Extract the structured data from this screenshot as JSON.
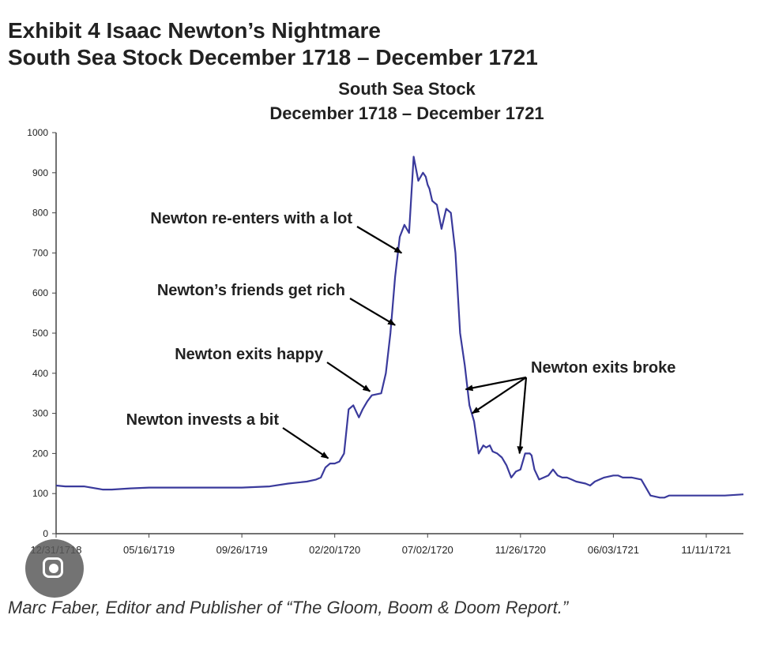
{
  "header": {
    "line1": "Exhibit 4  Isaac Newton’s Nightmare",
    "line2": "South Sea Stock December 1718 – December 1721"
  },
  "caption": "Marc Faber, Editor and Publisher of “The Gloom, Boom & Doom Report.”",
  "overlay_icon": "lens-search-icon",
  "colors": {
    "series": "#3a3a9c",
    "axis": "#444444",
    "text": "#222222"
  },
  "chart_data": {
    "type": "line",
    "title": "South Sea Stock",
    "subtitle": "December 1718 – December 1721",
    "xlabel": "",
    "ylabel": "",
    "ylim": [
      0,
      1000
    ],
    "yticks": [
      0,
      100,
      200,
      300,
      400,
      500,
      600,
      700,
      800,
      900,
      1000
    ],
    "xticks": [
      "12/31/1718",
      "05/16/1719",
      "09/26/1719",
      "02/20/1720",
      "07/02/1720",
      "11/26/1720",
      "06/03/1721",
      "11/11/1721"
    ],
    "x_index_range": [
      0,
      7.4
    ],
    "grid": false,
    "legend": "none",
    "series": [
      {
        "x": [
          0,
          0.1,
          0.3,
          0.5,
          0.6,
          0.8,
          1.0,
          1.5,
          2.0,
          2.3,
          2.5,
          2.7,
          2.8,
          2.85,
          2.9,
          2.95,
          3.0,
          3.05,
          3.1,
          3.15,
          3.2,
          3.23,
          3.26,
          3.3,
          3.35,
          3.4,
          3.5,
          3.55,
          3.6,
          3.65,
          3.7,
          3.75,
          3.8,
          3.85,
          3.9,
          3.95,
          3.98,
          4.0,
          4.02,
          4.05,
          4.1,
          4.15,
          4.2,
          4.25,
          4.3,
          4.35,
          4.4,
          4.45,
          4.5,
          4.55,
          4.6,
          4.63,
          4.67,
          4.7,
          4.75,
          4.8,
          4.85,
          4.9,
          4.95,
          5.0,
          5.05,
          5.1,
          5.12,
          5.15,
          5.2,
          5.25,
          5.3,
          5.35,
          5.4,
          5.45,
          5.5,
          5.55,
          5.6,
          5.7,
          5.75,
          5.8,
          5.9,
          6.0,
          6.05,
          6.1,
          6.2,
          6.3,
          6.4,
          6.5,
          6.55,
          6.6,
          6.7,
          6.8,
          7.0,
          7.2,
          7.4
        ],
        "y": [
          120,
          118,
          118,
          110,
          110,
          113,
          115,
          115,
          115,
          118,
          125,
          130,
          135,
          140,
          165,
          175,
          175,
          180,
          200,
          310,
          320,
          305,
          290,
          310,
          330,
          345,
          350,
          400,
          500,
          640,
          740,
          770,
          750,
          940,
          880,
          900,
          890,
          870,
          860,
          830,
          820,
          760,
          810,
          800,
          700,
          500,
          420,
          320,
          280,
          200,
          220,
          215,
          220,
          205,
          200,
          190,
          170,
          140,
          155,
          160,
          200,
          200,
          195,
          160,
          135,
          140,
          145,
          160,
          145,
          140,
          140,
          135,
          130,
          125,
          120,
          130,
          140,
          145,
          145,
          140,
          140,
          135,
          95,
          90,
          90,
          95,
          95,
          95,
          95,
          95,
          98
        ]
      }
    ],
    "annotations": [
      {
        "text": "Newton invests a bit",
        "x": 2.93,
        "y": 188
      },
      {
        "text": "Newton exits happy",
        "x": 3.38,
        "y": 355
      },
      {
        "text": "Newton’s friends get rich",
        "x": 3.65,
        "y": 520
      },
      {
        "text": "Newton re-enters with a lot",
        "x": 3.72,
        "y": 700
      },
      {
        "text": "Newton exits broke",
        "x": [
          4.41,
          4.48,
          4.99
        ],
        "y": [
          360,
          300,
          200
        ]
      }
    ]
  }
}
